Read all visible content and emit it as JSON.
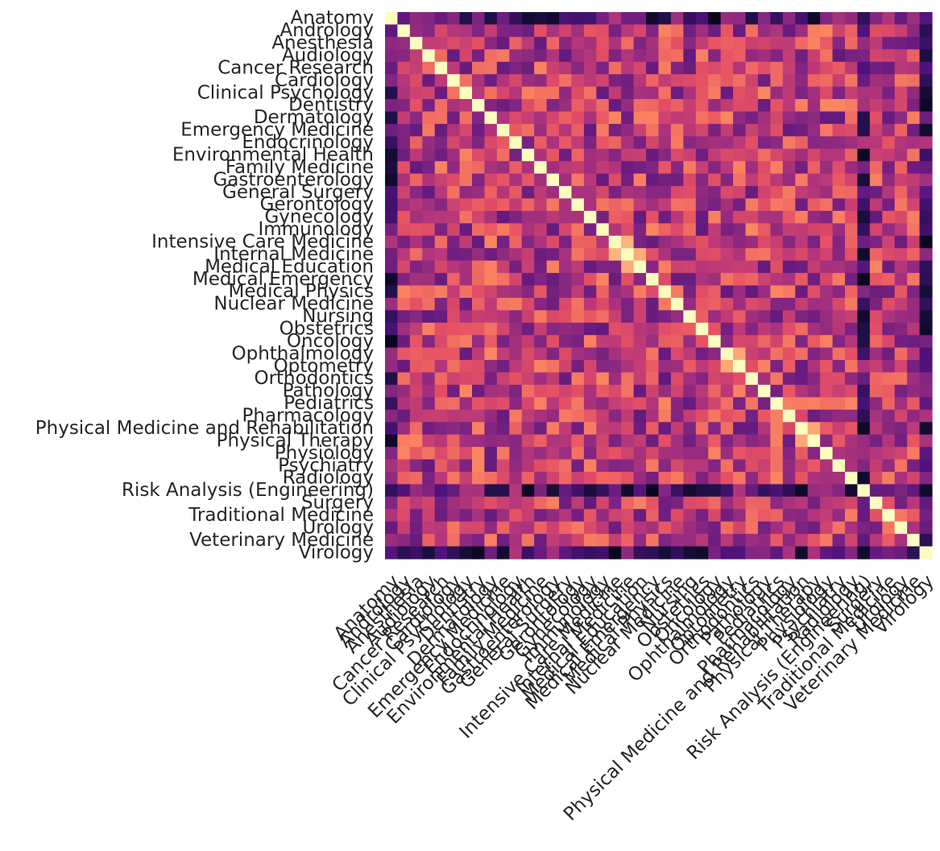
{
  "chart_data": {
    "type": "heatmap",
    "title": "",
    "xlabel": "",
    "ylabel": "",
    "labels": [
      "Anatomy",
      "Andrology",
      "Anesthesia",
      "Audiology",
      "Cancer Research",
      "Cardiology",
      "Clinical Psychology",
      "Dentistry",
      "Dermatology",
      "Emergency Medicine",
      "Endocrinology",
      "Environmental Health",
      "Family Medicine",
      "Gastroenterology",
      "General Surgery",
      "Gerontology",
      "Gynecology",
      "Immunology",
      "Intensive Care Medicine",
      "Internal Medicine",
      "Medical Education",
      "Medical Emergency",
      "Medical Physics",
      "Nuclear Medicine",
      "Nursing",
      "Obstetrics",
      "Oncology",
      "Ophthalmology",
      "Optometry",
      "Orthodontics",
      "Pathology",
      "Pediatrics",
      "Pharmacology",
      "Physical Medicine and Rehabilitation",
      "Physical Therapy",
      "Physiology",
      "Psychiatry",
      "Radiology",
      "Risk Analysis (Engineering)",
      "Surgery",
      "Traditional Medicine",
      "Urology",
      "Veterinary Medicine",
      "Virology"
    ],
    "colormap": "magma",
    "color_range": [
      0,
      1
    ],
    "diagonal_value": 1.0,
    "off_diagonal_range": [
      0.0,
      0.85
    ],
    "strong_pairs": [
      [
        "Intensive Care Medicine",
        "Internal Medicine",
        0.85
      ],
      [
        "Internal Medicine",
        "Medical Education",
        0.83
      ],
      [
        "Ophthalmology",
        "Optometry",
        0.82
      ],
      [
        "Physical Medicine and Rehabilitation",
        "Physical Therapy",
        0.82
      ],
      [
        "Dentistry",
        "Orthodontics",
        0.6
      ],
      [
        "Andrology",
        "Urology",
        0.55
      ]
    ],
    "weak_rows": [
      "Virology",
      "Anatomy",
      "Risk Analysis (Engineering)"
    ]
  }
}
